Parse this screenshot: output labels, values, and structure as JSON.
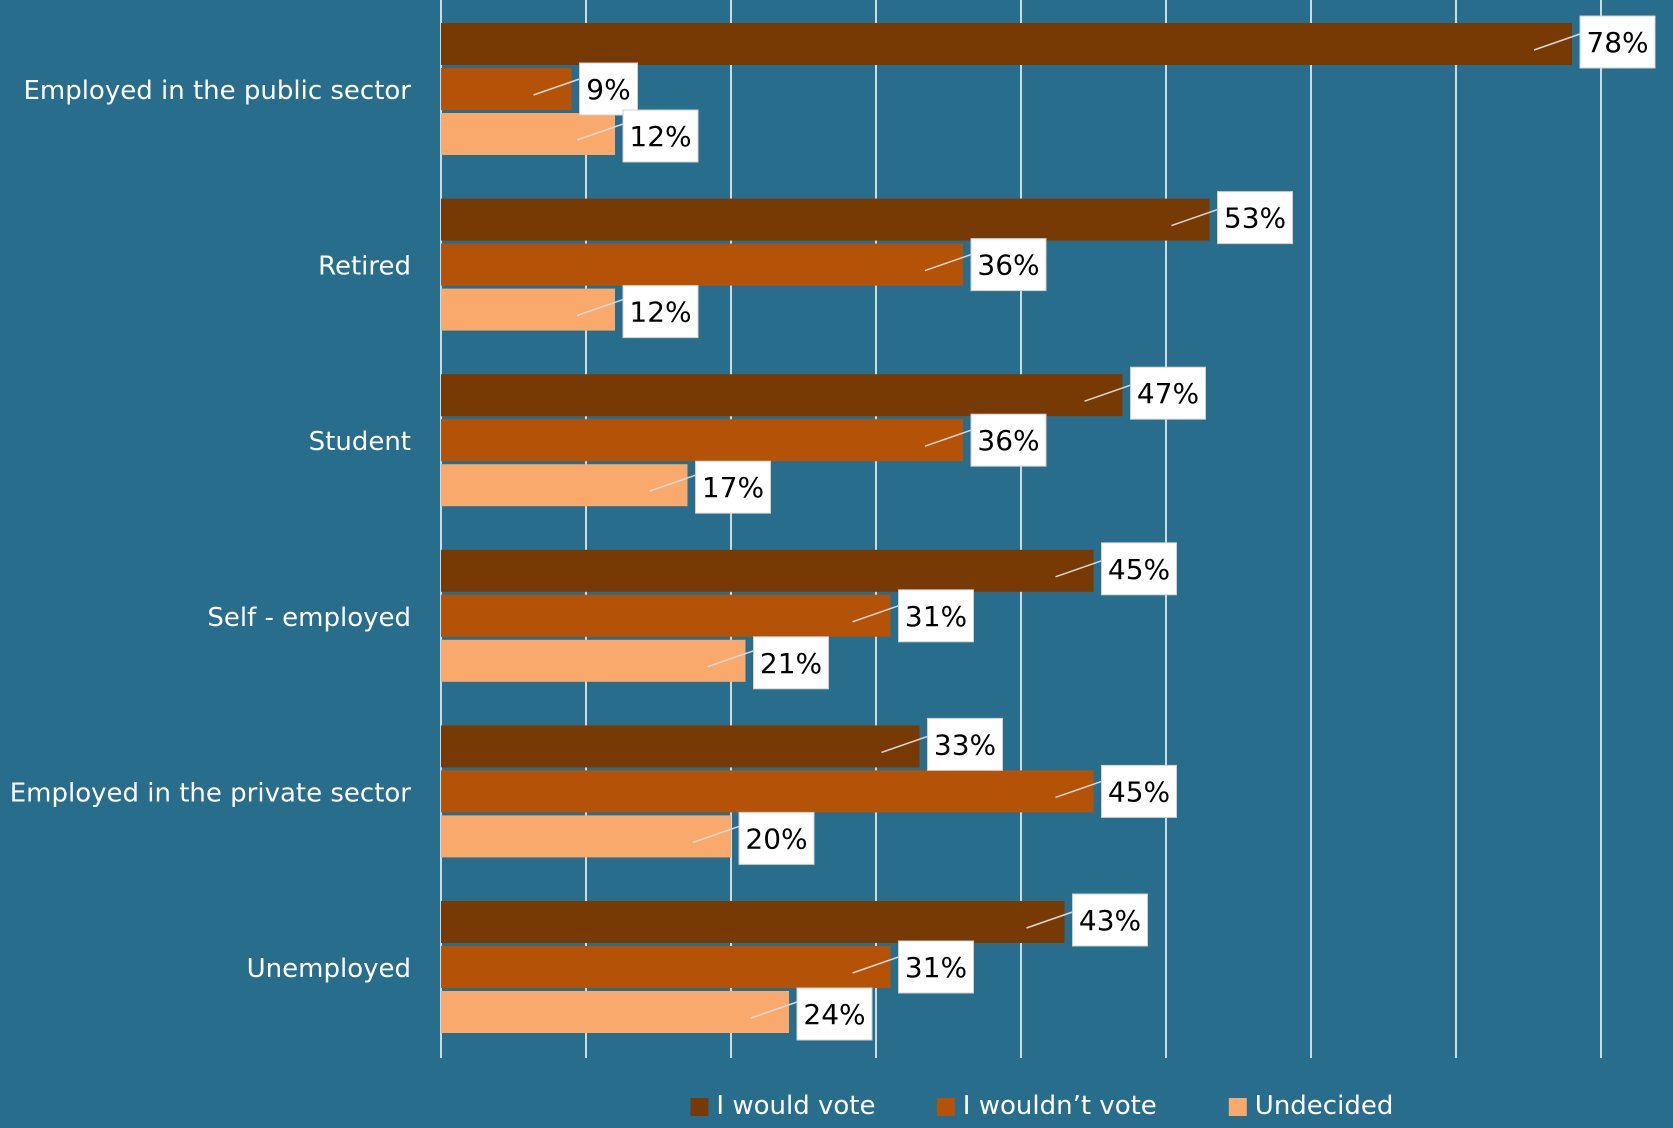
{
  "chart_data": {
    "type": "bar",
    "orientation": "horizontal",
    "categories": [
      "Employed in the public sector",
      "Retired",
      "Student",
      "Self - employed",
      "Employed in the private sector",
      "Unemployed"
    ],
    "series": [
      {
        "name": "I would vote",
        "color": "#773a04",
        "values": [
          78,
          53,
          47,
          45,
          33,
          43
        ],
        "labels": [
          "78%",
          "53%",
          "47%",
          "45%",
          "33%",
          "43%"
        ]
      },
      {
        "name": "I wouldn’t vote",
        "color": "#b45308",
        "values": [
          9,
          36,
          36,
          31,
          45,
          31
        ],
        "labels": [
          "9%",
          "36%",
          "36%",
          "31%",
          "45%",
          "31%"
        ]
      },
      {
        "name": "Undecided",
        "color": "#f9a96b",
        "values": [
          12,
          12,
          17,
          21,
          20,
          24
        ],
        "labels": [
          "12%",
          "12%",
          "17%",
          "21%",
          "20%",
          "24%"
        ]
      }
    ],
    "xlim": [
      0,
      80
    ],
    "x_gridline_step": 10,
    "grid": true,
    "x_tick_labels_shown": false,
    "legend": "bottom",
    "background_color": "#286e8c",
    "title": "",
    "xlabel": "",
    "ylabel": ""
  }
}
